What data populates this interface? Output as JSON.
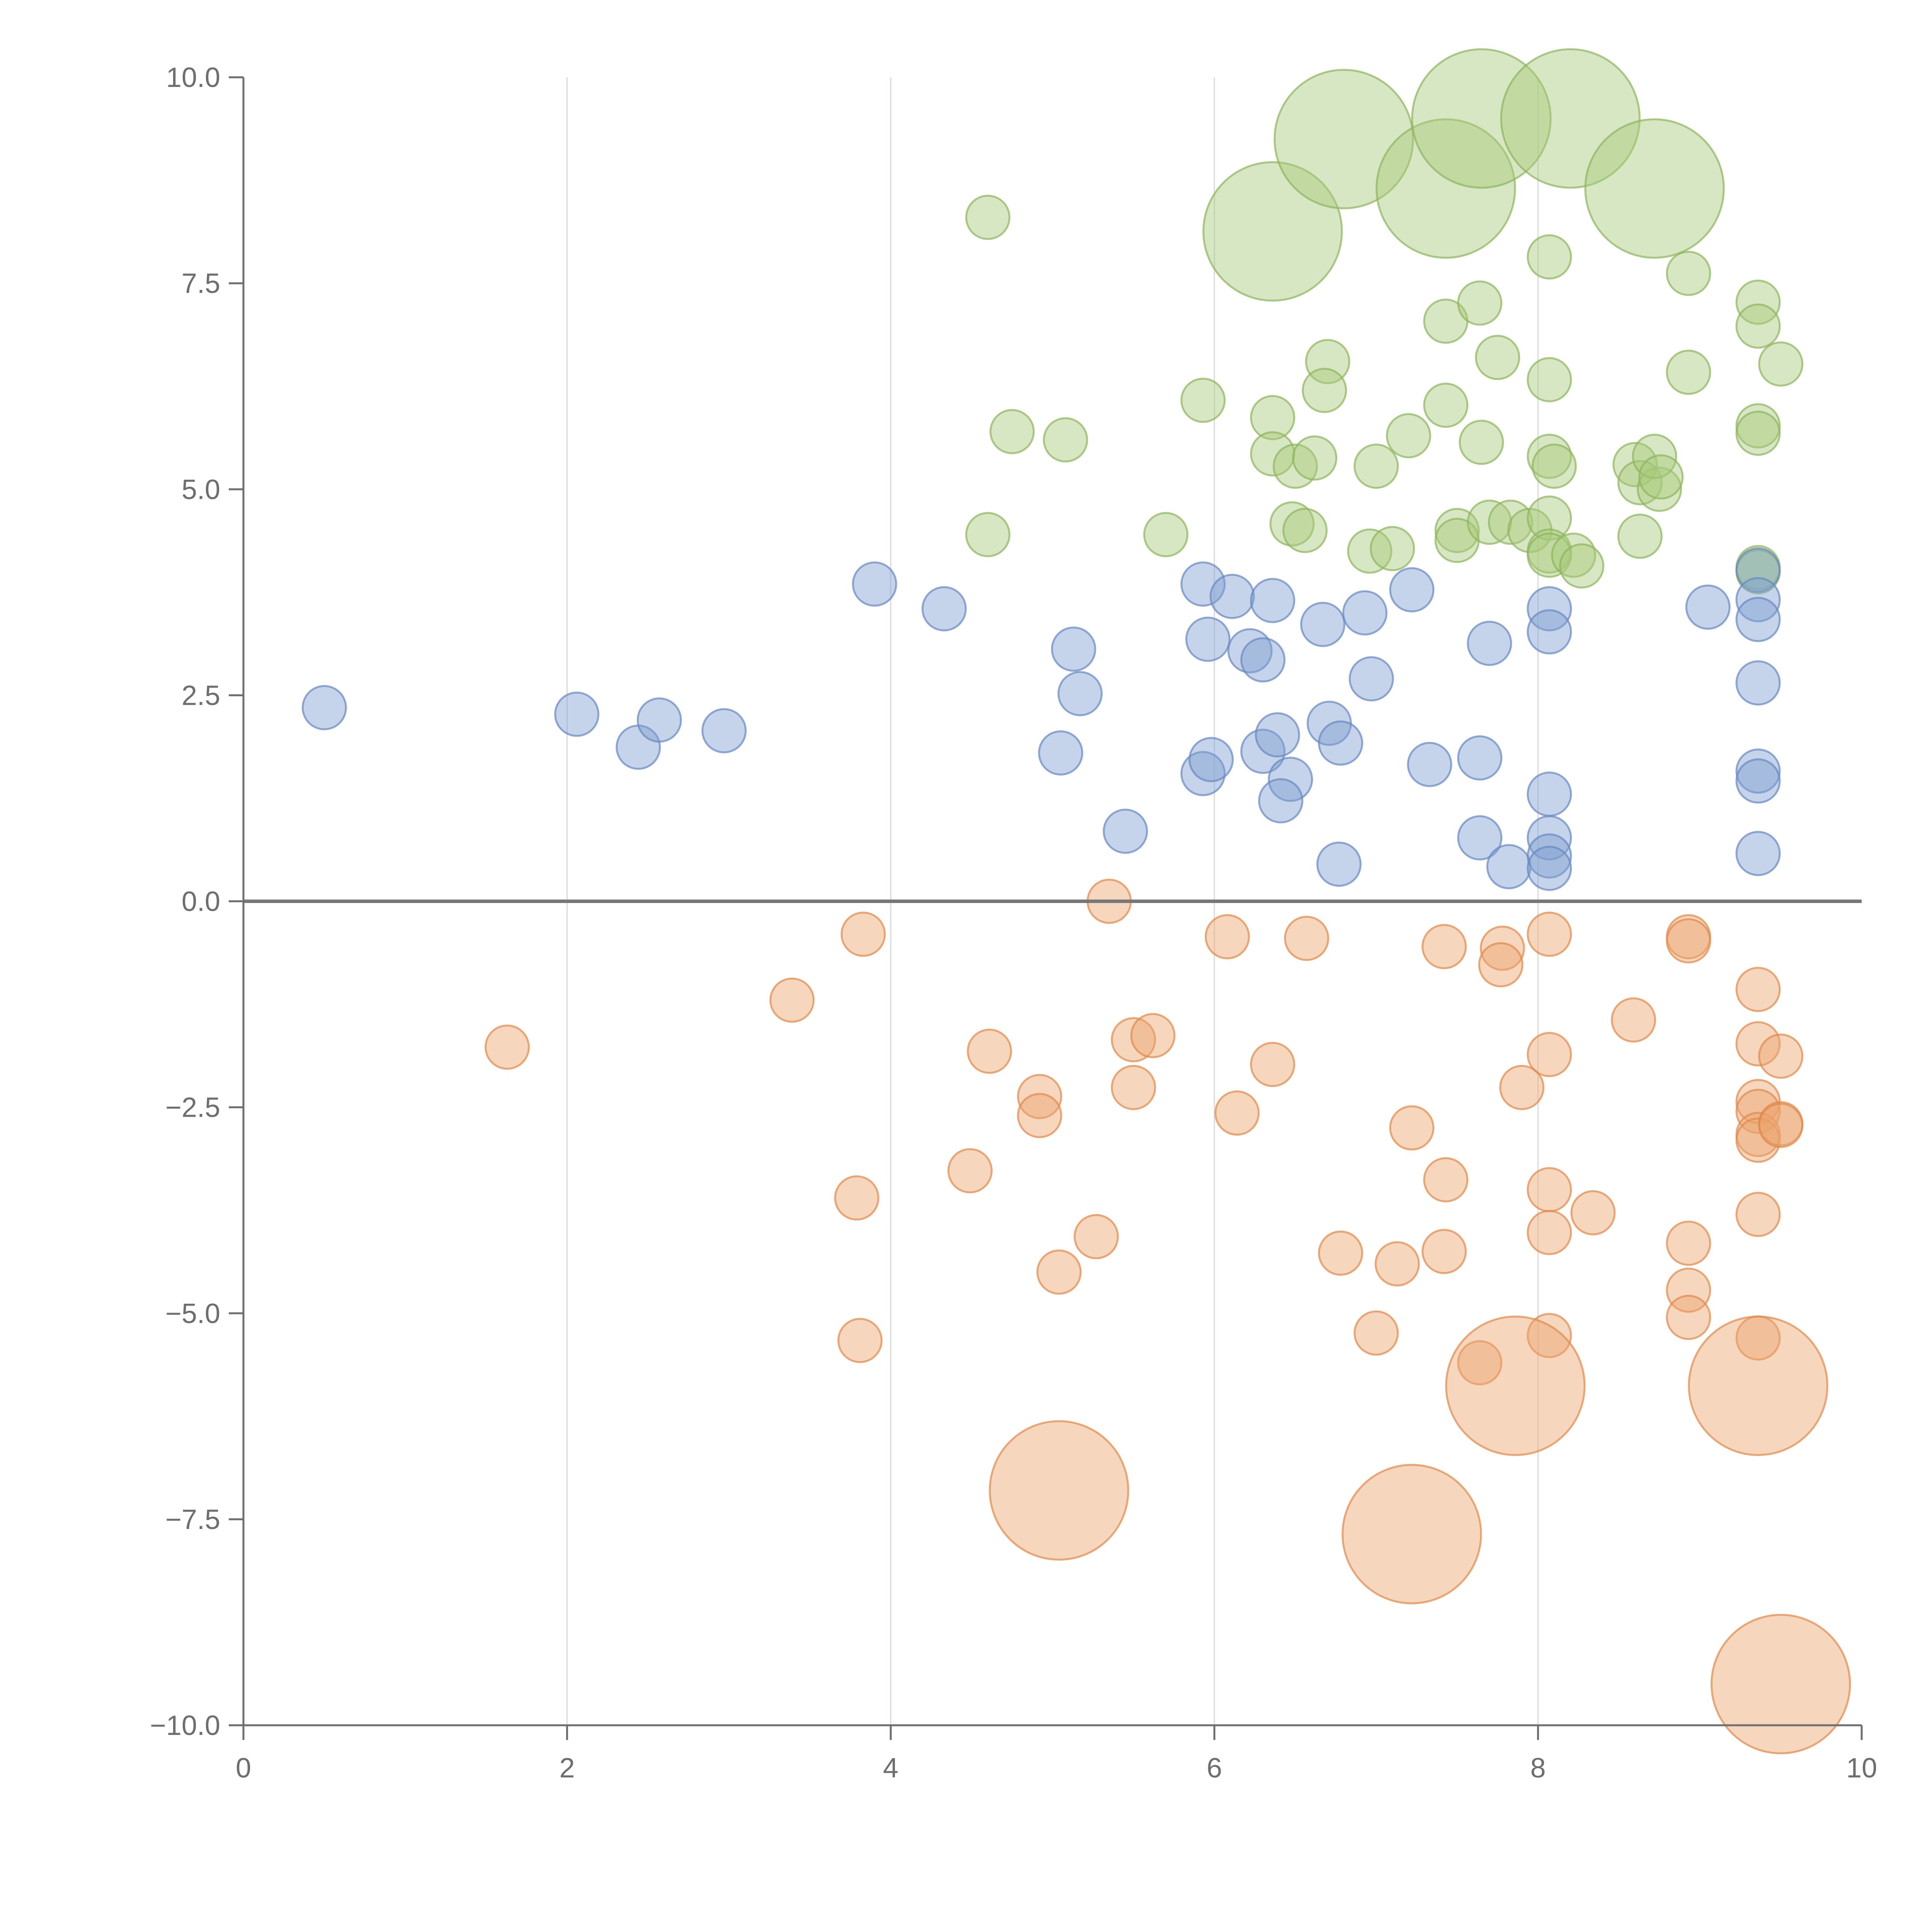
{
  "chart_data": {
    "type": "scatter",
    "title": "",
    "xlabel": "",
    "ylabel": "",
    "xlim": [
      0,
      10
    ],
    "ylim": [
      -10,
      10
    ],
    "x_ticks": [
      "0",
      "2",
      "4",
      "6",
      "8",
      "10"
    ],
    "y_ticks": [
      "−10.0",
      "−7.5",
      "−5.0",
      "−2.5",
      "0.0",
      "2.5",
      "5.0",
      "7.5",
      "10.0"
    ],
    "vertical_grid_at": [
      2,
      4,
      6,
      8
    ],
    "zero_line": 0,
    "marker_opacity": 0.45,
    "series": [
      {
        "name": "green",
        "color": "#a9c97a",
        "edge": "#8db35c",
        "points": [
          [
            4.6,
            8.3,
            1
          ],
          [
            4.75,
            5.7,
            1
          ],
          [
            4.6,
            4.45,
            1
          ],
          [
            5.08,
            5.6,
            1
          ],
          [
            5.7,
            4.45,
            1
          ],
          [
            5.93,
            6.08,
            1
          ],
          [
            6.36,
            5.87,
            1
          ],
          [
            6.36,
            5.43,
            1
          ],
          [
            6.5,
            5.28,
            1
          ],
          [
            6.62,
            5.38,
            1
          ],
          [
            6.48,
            4.58,
            1
          ],
          [
            6.56,
            4.5,
            1
          ],
          [
            6.7,
            6.55,
            1
          ],
          [
            6.68,
            6.2,
            1
          ],
          [
            7.0,
            5.28,
            1
          ],
          [
            6.96,
            4.25,
            1
          ],
          [
            7.1,
            4.28,
            1
          ],
          [
            7.2,
            5.65,
            1
          ],
          [
            7.43,
            6.02,
            1
          ],
          [
            7.43,
            7.04,
            1
          ],
          [
            7.64,
            7.26,
            1
          ],
          [
            7.65,
            5.57,
            1
          ],
          [
            7.75,
            6.6,
            1
          ],
          [
            7.5,
            4.5,
            1
          ],
          [
            7.5,
            4.38,
            1
          ],
          [
            7.7,
            4.6,
            1
          ],
          [
            7.83,
            4.6,
            1
          ],
          [
            7.95,
            4.5,
            1
          ],
          [
            8.07,
            7.82,
            1
          ],
          [
            8.07,
            6.33,
            1
          ],
          [
            8.07,
            5.4,
            1
          ],
          [
            8.1,
            5.28,
            1
          ],
          [
            8.07,
            4.65,
            1
          ],
          [
            8.07,
            4.25,
            1
          ],
          [
            8.07,
            4.2,
            1
          ],
          [
            8.22,
            4.2,
            1
          ],
          [
            8.27,
            4.07,
            1
          ],
          [
            8.6,
            5.3,
            1
          ],
          [
            8.63,
            5.08,
            1
          ],
          [
            8.75,
            5.0,
            1
          ],
          [
            8.72,
            5.4,
            1
          ],
          [
            8.76,
            5.15,
            1
          ],
          [
            8.63,
            4.43,
            1
          ],
          [
            8.93,
            7.62,
            1
          ],
          [
            8.93,
            6.42,
            1
          ],
          [
            9.36,
            7.27,
            1
          ],
          [
            9.36,
            6.98,
            1
          ],
          [
            9.36,
            5.77,
            1
          ],
          [
            9.36,
            5.68,
            1
          ],
          [
            9.36,
            4.05,
            1
          ],
          [
            9.36,
            4.0,
            1
          ],
          [
            9.5,
            6.52,
            1
          ],
          [
            6.36,
            8.13,
            3.2
          ],
          [
            6.8,
            9.25,
            3.2
          ],
          [
            7.43,
            8.65,
            3.2
          ],
          [
            7.65,
            9.5,
            3.2
          ],
          [
            8.2,
            9.5,
            3.2
          ],
          [
            8.72,
            8.65,
            3.2
          ]
        ]
      },
      {
        "name": "blue",
        "color": "#7f9fd0",
        "edge": "#6687c0",
        "points": [
          [
            0.5,
            2.35,
            1
          ],
          [
            2.06,
            2.27,
            1
          ],
          [
            2.44,
            1.87,
            1
          ],
          [
            2.57,
            2.2,
            1
          ],
          [
            2.97,
            2.07,
            1
          ],
          [
            3.9,
            3.85,
            1
          ],
          [
            4.33,
            3.55,
            1
          ],
          [
            5.05,
            1.8,
            1
          ],
          [
            5.13,
            3.06,
            1
          ],
          [
            5.17,
            2.52,
            1
          ],
          [
            5.45,
            0.85,
            1
          ],
          [
            5.93,
            3.85,
            1
          ],
          [
            5.96,
            3.18,
            1
          ],
          [
            5.93,
            1.55,
            1
          ],
          [
            5.98,
            1.72,
            1
          ],
          [
            6.11,
            3.7,
            1
          ],
          [
            6.22,
            3.04,
            1
          ],
          [
            6.3,
            2.93,
            1
          ],
          [
            6.3,
            1.82,
            1
          ],
          [
            6.36,
            3.65,
            1
          ],
          [
            6.39,
            2.02,
            1
          ],
          [
            6.47,
            1.48,
            1
          ],
          [
            6.41,
            1.22,
            1
          ],
          [
            6.67,
            3.36,
            1
          ],
          [
            6.71,
            2.16,
            1
          ],
          [
            6.78,
            1.92,
            1
          ],
          [
            6.77,
            0.45,
            1
          ],
          [
            6.93,
            3.5,
            1
          ],
          [
            6.97,
            2.7,
            1
          ],
          [
            7.22,
            3.78,
            1
          ],
          [
            7.33,
            1.66,
            1
          ],
          [
            7.64,
            1.74,
            1
          ],
          [
            7.64,
            0.77,
            1
          ],
          [
            7.7,
            3.13,
            1
          ],
          [
            7.82,
            0.42,
            1
          ],
          [
            8.07,
            3.55,
            1
          ],
          [
            8.07,
            3.27,
            1
          ],
          [
            8.07,
            1.3,
            1
          ],
          [
            8.07,
            0.77,
            1
          ],
          [
            8.07,
            0.55,
            1
          ],
          [
            8.07,
            0.4,
            1
          ],
          [
            9.05,
            3.57,
            1
          ],
          [
            9.36,
            4.02,
            1
          ],
          [
            9.36,
            3.66,
            1
          ],
          [
            9.36,
            3.42,
            1
          ],
          [
            9.36,
            2.65,
            1
          ],
          [
            9.36,
            1.58,
            1
          ],
          [
            9.36,
            1.46,
            1
          ],
          [
            9.36,
            0.58,
            1
          ]
        ]
      },
      {
        "name": "orange",
        "color": "#eba56d",
        "edge": "#e0894a",
        "points": [
          [
            1.63,
            -1.77,
            1
          ],
          [
            3.39,
            -1.2,
            1
          ],
          [
            3.83,
            -0.4,
            1
          ],
          [
            3.79,
            -3.6,
            1
          ],
          [
            3.81,
            -5.33,
            1
          ],
          [
            4.49,
            -3.27,
            1
          ],
          [
            4.61,
            -1.82,
            1
          ],
          [
            4.92,
            -2.37,
            1
          ],
          [
            4.92,
            -2.6,
            1
          ],
          [
            5.04,
            -4.5,
            1
          ],
          [
            5.27,
            -4.07,
            1
          ],
          [
            5.35,
            0.0,
            1
          ],
          [
            5.5,
            -1.68,
            1
          ],
          [
            5.5,
            -2.26,
            1
          ],
          [
            5.62,
            -1.63,
            1
          ],
          [
            6.08,
            -0.43,
            1
          ],
          [
            6.14,
            -2.57,
            1
          ],
          [
            6.36,
            -1.98,
            1
          ],
          [
            6.57,
            -0.45,
            1
          ],
          [
            6.78,
            -4.27,
            1
          ],
          [
            7.0,
            -5.24,
            1
          ],
          [
            7.13,
            -4.4,
            1
          ],
          [
            7.22,
            -2.75,
            1
          ],
          [
            7.42,
            -0.55,
            1
          ],
          [
            7.43,
            -3.38,
            1
          ],
          [
            7.42,
            -4.25,
            1
          ],
          [
            7.64,
            -5.6,
            1
          ],
          [
            7.78,
            -0.57,
            1
          ],
          [
            7.77,
            -0.77,
            1
          ],
          [
            7.9,
            -2.26,
            1
          ],
          [
            8.07,
            -0.4,
            1
          ],
          [
            8.07,
            -1.86,
            1
          ],
          [
            8.07,
            -3.5,
            1
          ],
          [
            8.07,
            -4.02,
            1
          ],
          [
            8.07,
            -5.27,
            1
          ],
          [
            8.34,
            -3.78,
            1
          ],
          [
            8.59,
            -1.44,
            1
          ],
          [
            8.93,
            -0.43,
            1
          ],
          [
            8.93,
            -0.48,
            1
          ],
          [
            8.93,
            -4.15,
            1
          ],
          [
            8.93,
            -4.72,
            1
          ],
          [
            8.93,
            -5.05,
            1
          ],
          [
            9.36,
            -1.07,
            1
          ],
          [
            9.36,
            -1.73,
            1
          ],
          [
            9.36,
            -2.43,
            1
          ],
          [
            9.36,
            -2.55,
            1
          ],
          [
            9.36,
            -2.83,
            1
          ],
          [
            9.36,
            -2.9,
            1
          ],
          [
            9.36,
            -3.8,
            1
          ],
          [
            9.36,
            -5.3,
            1
          ],
          [
            9.5,
            -1.88,
            1
          ],
          [
            9.5,
            -2.7,
            1
          ],
          [
            9.5,
            -2.72,
            1
          ],
          [
            5.04,
            -7.15,
            3.2
          ],
          [
            7.22,
            -7.68,
            3.2
          ],
          [
            7.86,
            -5.88,
            3.2
          ],
          [
            9.36,
            -5.88,
            3.2
          ],
          [
            9.5,
            -9.5,
            3.2
          ]
        ]
      }
    ]
  }
}
